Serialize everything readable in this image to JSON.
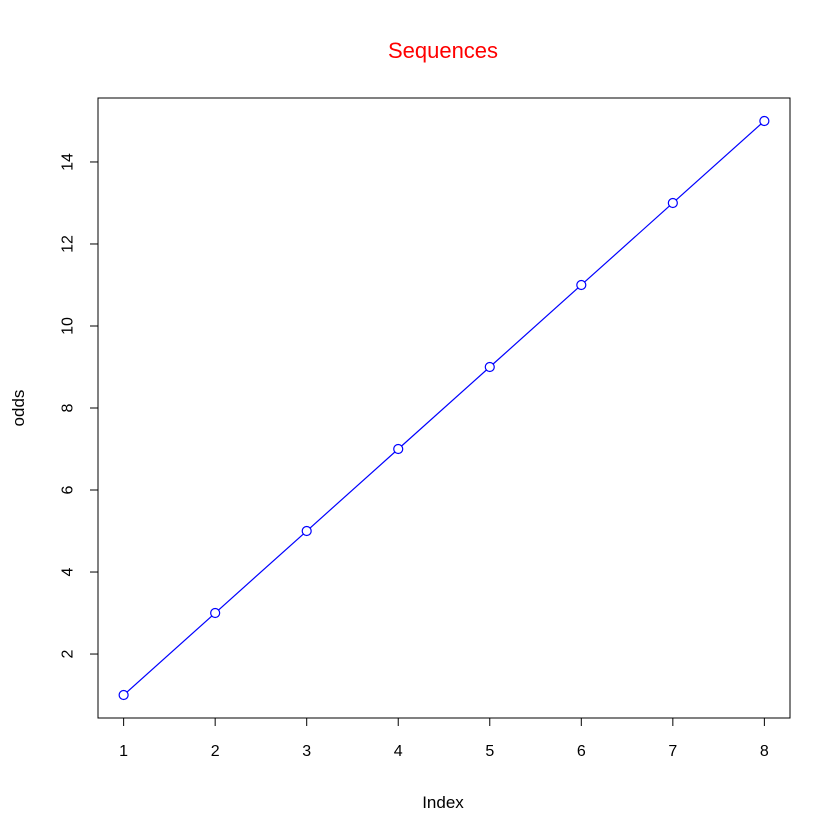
{
  "chart_data": {
    "type": "line",
    "title": "Sequences",
    "title_color": "#ff0000",
    "xlabel": "Index",
    "ylabel": "odds",
    "x": [
      1,
      2,
      3,
      4,
      5,
      6,
      7,
      8
    ],
    "series": [
      {
        "values": [
          1,
          3,
          5,
          7,
          9,
          11,
          13,
          15
        ],
        "color": "#0000ff",
        "marker": "open-circle"
      }
    ],
    "xticks": [
      1,
      2,
      3,
      4,
      5,
      6,
      7,
      8
    ],
    "yticks": [
      2,
      4,
      6,
      8,
      10,
      12,
      14
    ],
    "xlim": [
      0.72,
      8.28
    ],
    "ylim": [
      0.44,
      15.56
    ],
    "grid": false,
    "legend": "none"
  }
}
